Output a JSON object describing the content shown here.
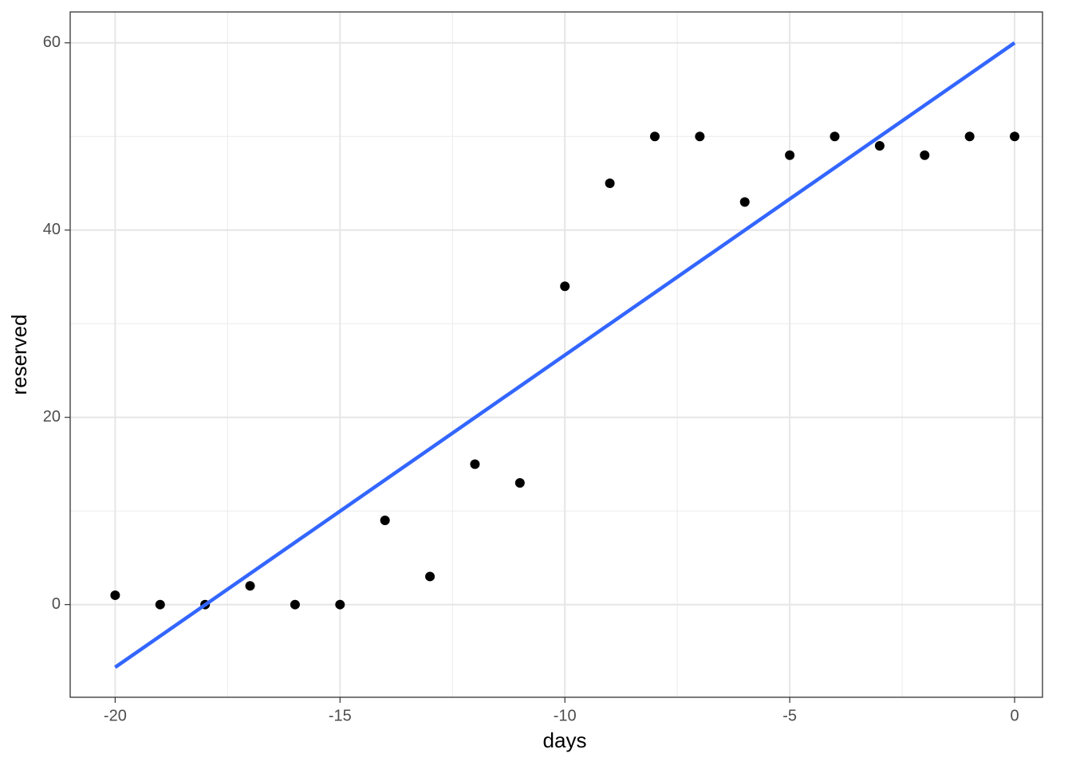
{
  "chart_data": {
    "type": "scatter",
    "x_label": "days",
    "y_label": "reserved",
    "x": [
      -20,
      -19,
      -18,
      -17,
      -16,
      -15,
      -14,
      -13,
      -12,
      -11,
      -10,
      -9,
      -8,
      -7,
      -6,
      -5,
      -4,
      -3,
      -2,
      -1,
      0
    ],
    "values": [
      1,
      0,
      0,
      2,
      0,
      0,
      9,
      3,
      15,
      13,
      34,
      45,
      50,
      50,
      43,
      48,
      50,
      49,
      48,
      50,
      50
    ],
    "color": "#000000",
    "trend_line": {
      "x": [
        -20,
        0
      ],
      "values": [
        -6.7,
        60
      ],
      "color": "#3366FF"
    },
    "xlim": [
      -21,
      0.62
    ],
    "ylim": [
      -9.9,
      63.3
    ],
    "xticks": [
      -20,
      -15,
      -10,
      -5,
      0
    ],
    "yticks": [
      0,
      20,
      40,
      60
    ],
    "minor_xticks": [
      -17.5,
      -12.5,
      -7.5,
      -2.5
    ],
    "minor_yticks": [
      10,
      30,
      50
    ],
    "grid": true
  }
}
